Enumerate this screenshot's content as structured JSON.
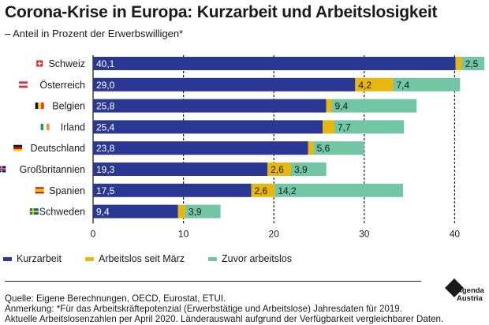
{
  "title": "Corona-Krise in Europa: Kurzarbeit und Arbeitslosigkeit",
  "subtitle": "– Anteil in Prozent der Erwerbswilligen*",
  "colors": {
    "kurzarbeit": "#2b3893",
    "arbeitslos_seit_maerz": "#e5b710",
    "zuvor_arbeitslos": "#72c5a5"
  },
  "chart_data": {
    "type": "bar",
    "orientation": "horizontal",
    "stacked": true,
    "categories": [
      "Schweiz",
      "Österreich",
      "Belgien",
      "Irland",
      "Deutschland",
      "Großbritannien",
      "Spanien",
      "Schweden"
    ],
    "flags": [
      "swiss-flag",
      "austria-flag",
      "belgium-flag",
      "ireland-flag",
      "germany-flag",
      "uk-flag",
      "spain-flag",
      "sweden-flag"
    ],
    "series": [
      {
        "name": "Kurzarbeit",
        "values": [
          40.1,
          29.0,
          25.8,
          25.4,
          23.8,
          19.3,
          17.5,
          9.4
        ],
        "labels": [
          "40,1",
          "29,0",
          "25,8",
          "25,4",
          "23,8",
          "19,3",
          "17,5",
          "9,4"
        ]
      },
      {
        "name": "Arbeitslos seit März",
        "values": [
          0.7,
          4.2,
          0.6,
          1.3,
          0.6,
          2.6,
          2.6,
          0.8
        ],
        "labels": [
          "",
          "4,2",
          "",
          "",
          "",
          "2,6",
          "2,6",
          ""
        ]
      },
      {
        "name": "Zuvor arbeitslos",
        "values": [
          2.5,
          7.4,
          9.4,
          7.7,
          5.6,
          3.9,
          14.2,
          3.9
        ],
        "labels": [
          "2,5",
          "7,4",
          "9,4",
          "7,7",
          "5,6",
          "3,9",
          "14,2",
          "3,9"
        ]
      }
    ],
    "xlim": [
      0,
      43
    ],
    "xticks": [
      0,
      10,
      20,
      30,
      40
    ],
    "grid": true,
    "legend_position": "bottom-left"
  },
  "footer": {
    "source": "Quelle: Eigene Berechnungen, OECD, Eurostat, ETUI.",
    "note": "Anmerkung: *Für das Arbeitskräftepotenzial (Erwerbstätige und Arbeitslose) Jahresdaten für 2019.",
    "note2": "Aktuelle Arbeitslosenzahlen per April 2020. Länderauswahl aufgrund der Verfügbarkeit vergleichbarer Daten."
  },
  "logo": {
    "line1": "Agenda",
    "line2": "Austria"
  }
}
